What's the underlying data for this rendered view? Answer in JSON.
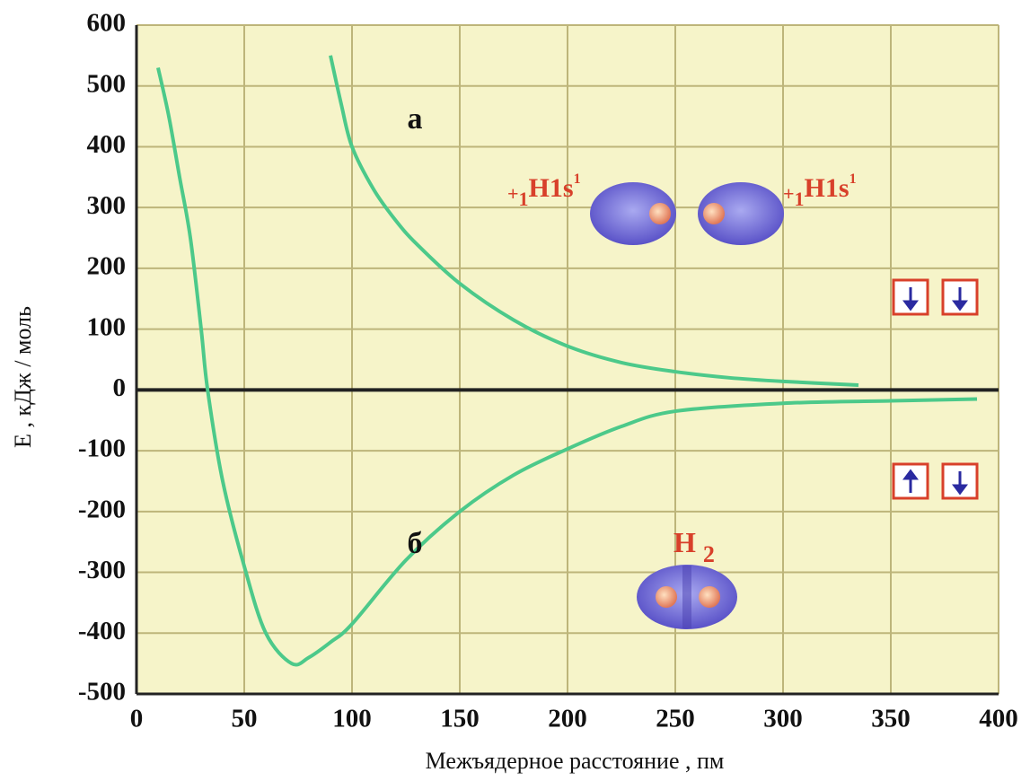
{
  "chart_data": {
    "type": "line",
    "x_label": "Межъядерное расстояние ,  пм",
    "y_label": "Е , кДж / моль",
    "xlim": [
      0,
      400
    ],
    "xticks": [
      0,
      50,
      100,
      150,
      200,
      250,
      300,
      350,
      400
    ],
    "ylim": [
      -500,
      600
    ],
    "yticks": [
      -500,
      -400,
      -300,
      -200,
      -100,
      0,
      100,
      200,
      300,
      400,
      500,
      600
    ],
    "grid": true,
    "series": [
      {
        "name": "а",
        "color": "#4cc98a",
        "x": [
          90,
          95,
          100,
          110,
          120,
          130,
          150,
          175,
          200,
          225,
          250,
          275,
          300,
          335
        ],
        "values": [
          550,
          470,
          400,
          330,
          280,
          240,
          175,
          115,
          72,
          45,
          30,
          20,
          14,
          8
        ]
      },
      {
        "name": "б",
        "color": "#4cc98a",
        "x": [
          10,
          15,
          20,
          25,
          30,
          33,
          40,
          50,
          60,
          72,
          80,
          90,
          100,
          125,
          150,
          175,
          200,
          225,
          250,
          300,
          350,
          390
        ],
        "values": [
          530,
          450,
          350,
          250,
          100,
          0,
          -150,
          -290,
          -400,
          -450,
          -440,
          -415,
          -385,
          -280,
          -200,
          -140,
          -97,
          -60,
          -35,
          -22,
          -18,
          -15
        ]
      }
    ],
    "annotations": [
      {
        "parts": [
          "+",
          "1",
          "H1s",
          "1"
        ]
      },
      {
        "parts": [
          "+",
          "1",
          "H1s",
          "1"
        ]
      },
      {
        "parts": [
          "H",
          "2"
        ]
      }
    ]
  }
}
